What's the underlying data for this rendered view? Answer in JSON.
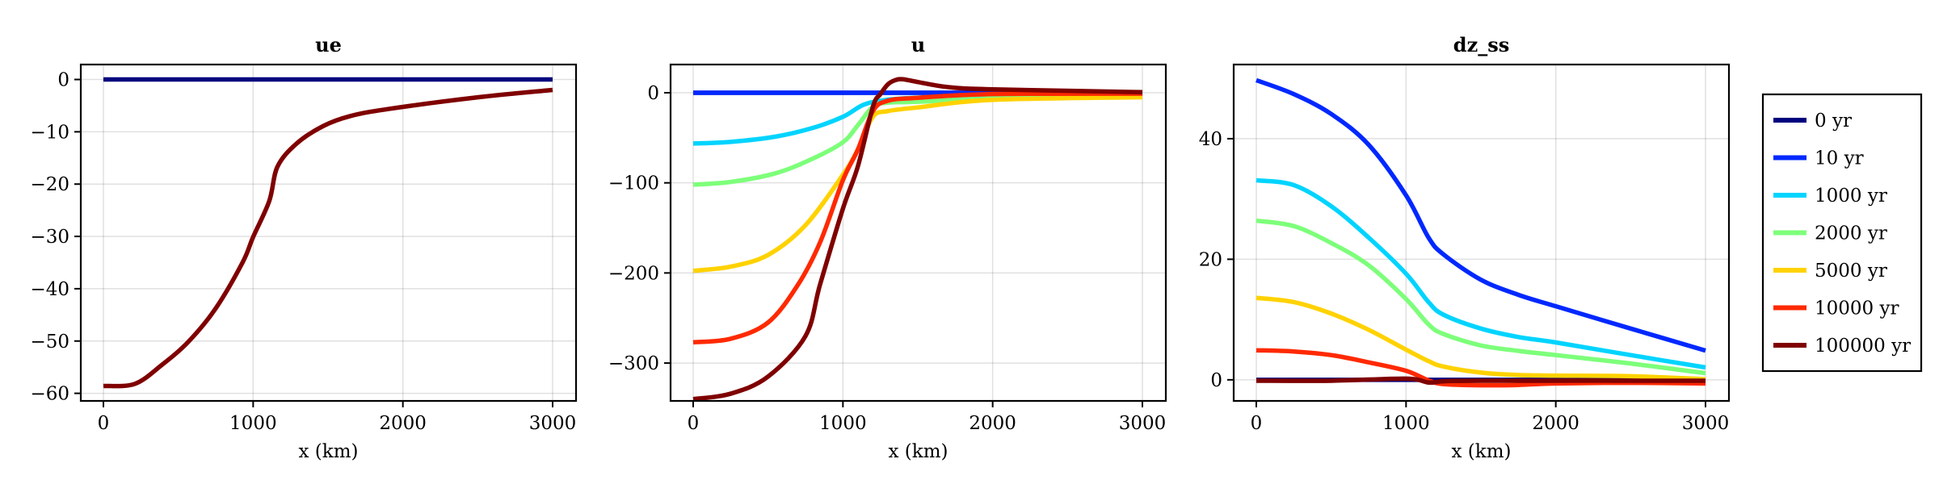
{
  "colors": {
    "0 yr": "#00007f",
    "10 yr": "#0028ff",
    "1000 yr": "#00d4ff",
    "2000 yr": "#7dff7a",
    "5000 yr": "#ffd200",
    "10000 yr": "#ff2900",
    "100000 yr": "#7f0000"
  },
  "legend": {
    "placement": "right",
    "entries": [
      "0 yr",
      "10 yr",
      "1000 yr",
      "2000 yr",
      "5000 yr",
      "10000 yr",
      "100000 yr"
    ]
  },
  "chart_data": [
    {
      "type": "line",
      "title": "ue",
      "xlabel": "x (km)",
      "ylabel": "",
      "grid": true,
      "xlim": [
        0,
        3000
      ],
      "ylim": [
        -61.45,
        2.86
      ],
      "xticks": [
        0,
        1000,
        2000,
        3000
      ],
      "xtick_labels": [
        "0",
        "1000",
        "2000",
        "3000"
      ],
      "yticks": [
        0,
        -10,
        -20,
        -30,
        -40,
        -50,
        -60
      ],
      "ytick_labels": [
        "0",
        "−10",
        "−20",
        "−30",
        "−40",
        "−50",
        "−60"
      ],
      "series": [
        {
          "name": "0 yr",
          "x": [
            0,
            3000
          ],
          "y": [
            0,
            0
          ]
        },
        {
          "name": "100000 yr",
          "x": [
            0,
            209,
            389,
            569,
            749,
            929,
            1000,
            1108,
            1162,
            1288,
            1468,
            1648,
            1900,
            2500,
            3000
          ],
          "y": [
            -58.6,
            -58.2,
            -54.6,
            -50.1,
            -43.8,
            -35.0,
            -30.1,
            -23.2,
            -16.7,
            -12.3,
            -8.9,
            -7.0,
            -5.65,
            -3.4,
            -2.0
          ]
        }
      ]
    },
    {
      "type": "line",
      "title": "u",
      "xlabel": "x (km)",
      "ylabel": "",
      "grid": true,
      "xlim": [
        0,
        3000
      ],
      "ylim": [
        -342,
        31.3
      ],
      "xticks": [
        0,
        1000,
        2000,
        3000
      ],
      "xtick_labels": [
        "0",
        "1000",
        "2000",
        "3000"
      ],
      "yticks": [
        0,
        -100,
        -200,
        -300
      ],
      "ytick_labels": [
        "0",
        "−100",
        "−200",
        "−300"
      ],
      "series": [
        {
          "name": "0 yr",
          "x": [
            0,
            3000
          ],
          "y": [
            0,
            0
          ]
        },
        {
          "name": "10 yr",
          "x": [
            0,
            3000
          ],
          "y": [
            0,
            0
          ]
        },
        {
          "name": "1000 yr",
          "x": [
            0,
            250,
            550,
            800,
            1000,
            1140,
            1290,
            1500,
            2000,
            3000
          ],
          "y": [
            -56.4,
            -54.5,
            -48.7,
            -39,
            -26.7,
            -13.2,
            -7.9,
            -5.5,
            -3.8,
            -3.0
          ]
        },
        {
          "name": "2000 yr",
          "x": [
            0,
            250,
            550,
            800,
            1000,
            1100,
            1200,
            1300,
            1500,
            2000,
            3000
          ],
          "y": [
            -102,
            -99,
            -89.4,
            -73,
            -54.9,
            -36,
            -15.7,
            -11,
            -10,
            -6.3,
            -4.0
          ]
        },
        {
          "name": "5000 yr",
          "x": [
            0,
            250,
            500,
            750,
            1000,
            1100,
            1200,
            1300,
            1500,
            2000,
            3000
          ],
          "y": [
            -197.6,
            -193,
            -180,
            -147,
            -91,
            -62.8,
            -26.7,
            -20.4,
            -16.3,
            -7.9,
            -5.0
          ]
        },
        {
          "name": "10000 yr",
          "x": [
            0,
            250,
            500,
            700,
            850,
            1000,
            1100,
            1200,
            1300,
            1500,
            2000,
            3000
          ],
          "y": [
            -277,
            -273,
            -255,
            -213,
            -165,
            -97,
            -63,
            -20.4,
            -8.9,
            -5.6,
            -1.5,
            -1.0
          ]
        },
        {
          "name": "100000 yr",
          "x": [
            0,
            250,
            500,
            750,
            847,
            1000,
            1100,
            1200,
            1250,
            1300,
            1350,
            1400,
            1500,
            1700,
            2000,
            3000
          ],
          "y": [
            -340,
            -334,
            -315,
            -270,
            -213,
            -128.6,
            -81.6,
            -15.7,
            -1.6,
            9.3,
            14,
            15,
            11.9,
            6.3,
            3.8,
            0.6
          ]
        }
      ]
    },
    {
      "type": "line",
      "title": "dz_ss",
      "xlabel": "x (km)",
      "ylabel": "",
      "grid": true,
      "xlim": [
        0,
        3000
      ],
      "ylim": [
        -3.5,
        52.3
      ],
      "xticks": [
        0,
        1000,
        2000,
        3000
      ],
      "xtick_labels": [
        "0",
        "1000",
        "2000",
        "3000"
      ],
      "yticks": [
        0,
        20,
        40
      ],
      "ytick_labels": [
        "0",
        "20",
        "40"
      ],
      "series": [
        {
          "name": "0 yr",
          "x": [
            0,
            3000
          ],
          "y": [
            0,
            0
          ]
        },
        {
          "name": "10 yr",
          "x": [
            0,
            250,
            500,
            750,
            1000,
            1150,
            1250,
            1500,
            1750,
            2000,
            2500,
            3000
          ],
          "y": [
            49.7,
            47.4,
            44.1,
            39.0,
            30.6,
            23.6,
            20.8,
            16.6,
            14.1,
            12.2,
            8.5,
            4.85
          ]
        },
        {
          "name": "1000 yr",
          "x": [
            0,
            250,
            500,
            750,
            1000,
            1150,
            1250,
            1500,
            1750,
            2000,
            2500,
            3000
          ],
          "y": [
            33.1,
            32.3,
            28.8,
            23.6,
            17.6,
            12.9,
            10.8,
            8.5,
            7.1,
            6.2,
            4.1,
            2.05
          ]
        },
        {
          "name": "2000 yr",
          "x": [
            0,
            250,
            500,
            750,
            1000,
            1150,
            1250,
            1500,
            1750,
            2000,
            2500,
            3000
          ],
          "y": [
            26.4,
            25.5,
            22.7,
            19.0,
            13.4,
            9.2,
            7.6,
            5.7,
            4.8,
            4.1,
            2.7,
            1.1
          ]
        },
        {
          "name": "5000 yr",
          "x": [
            0,
            250,
            500,
            750,
            1000,
            1150,
            1250,
            1500,
            1750,
            2000,
            2500,
            3000
          ],
          "y": [
            13.6,
            12.9,
            11.0,
            8.3,
            5.0,
            3.1,
            2.2,
            1.2,
            0.8,
            0.7,
            0.6,
            0.1
          ]
        },
        {
          "name": "10000 yr",
          "x": [
            0,
            250,
            500,
            750,
            1000,
            1150,
            1250,
            1500,
            1750,
            2000,
            2500,
            3000
          ],
          "y": [
            4.9,
            4.7,
            4.1,
            2.9,
            1.5,
            -0.1,
            -0.7,
            -0.9,
            -0.85,
            -0.6,
            -0.5,
            -0.6
          ]
        },
        {
          "name": "100000 yr",
          "x": [
            0,
            500,
            1000,
            1150,
            1250,
            1500,
            3000
          ],
          "y": [
            -0.15,
            -0.15,
            0.2,
            -0.45,
            -0.25,
            -0.15,
            -0.15
          ]
        }
      ]
    }
  ]
}
